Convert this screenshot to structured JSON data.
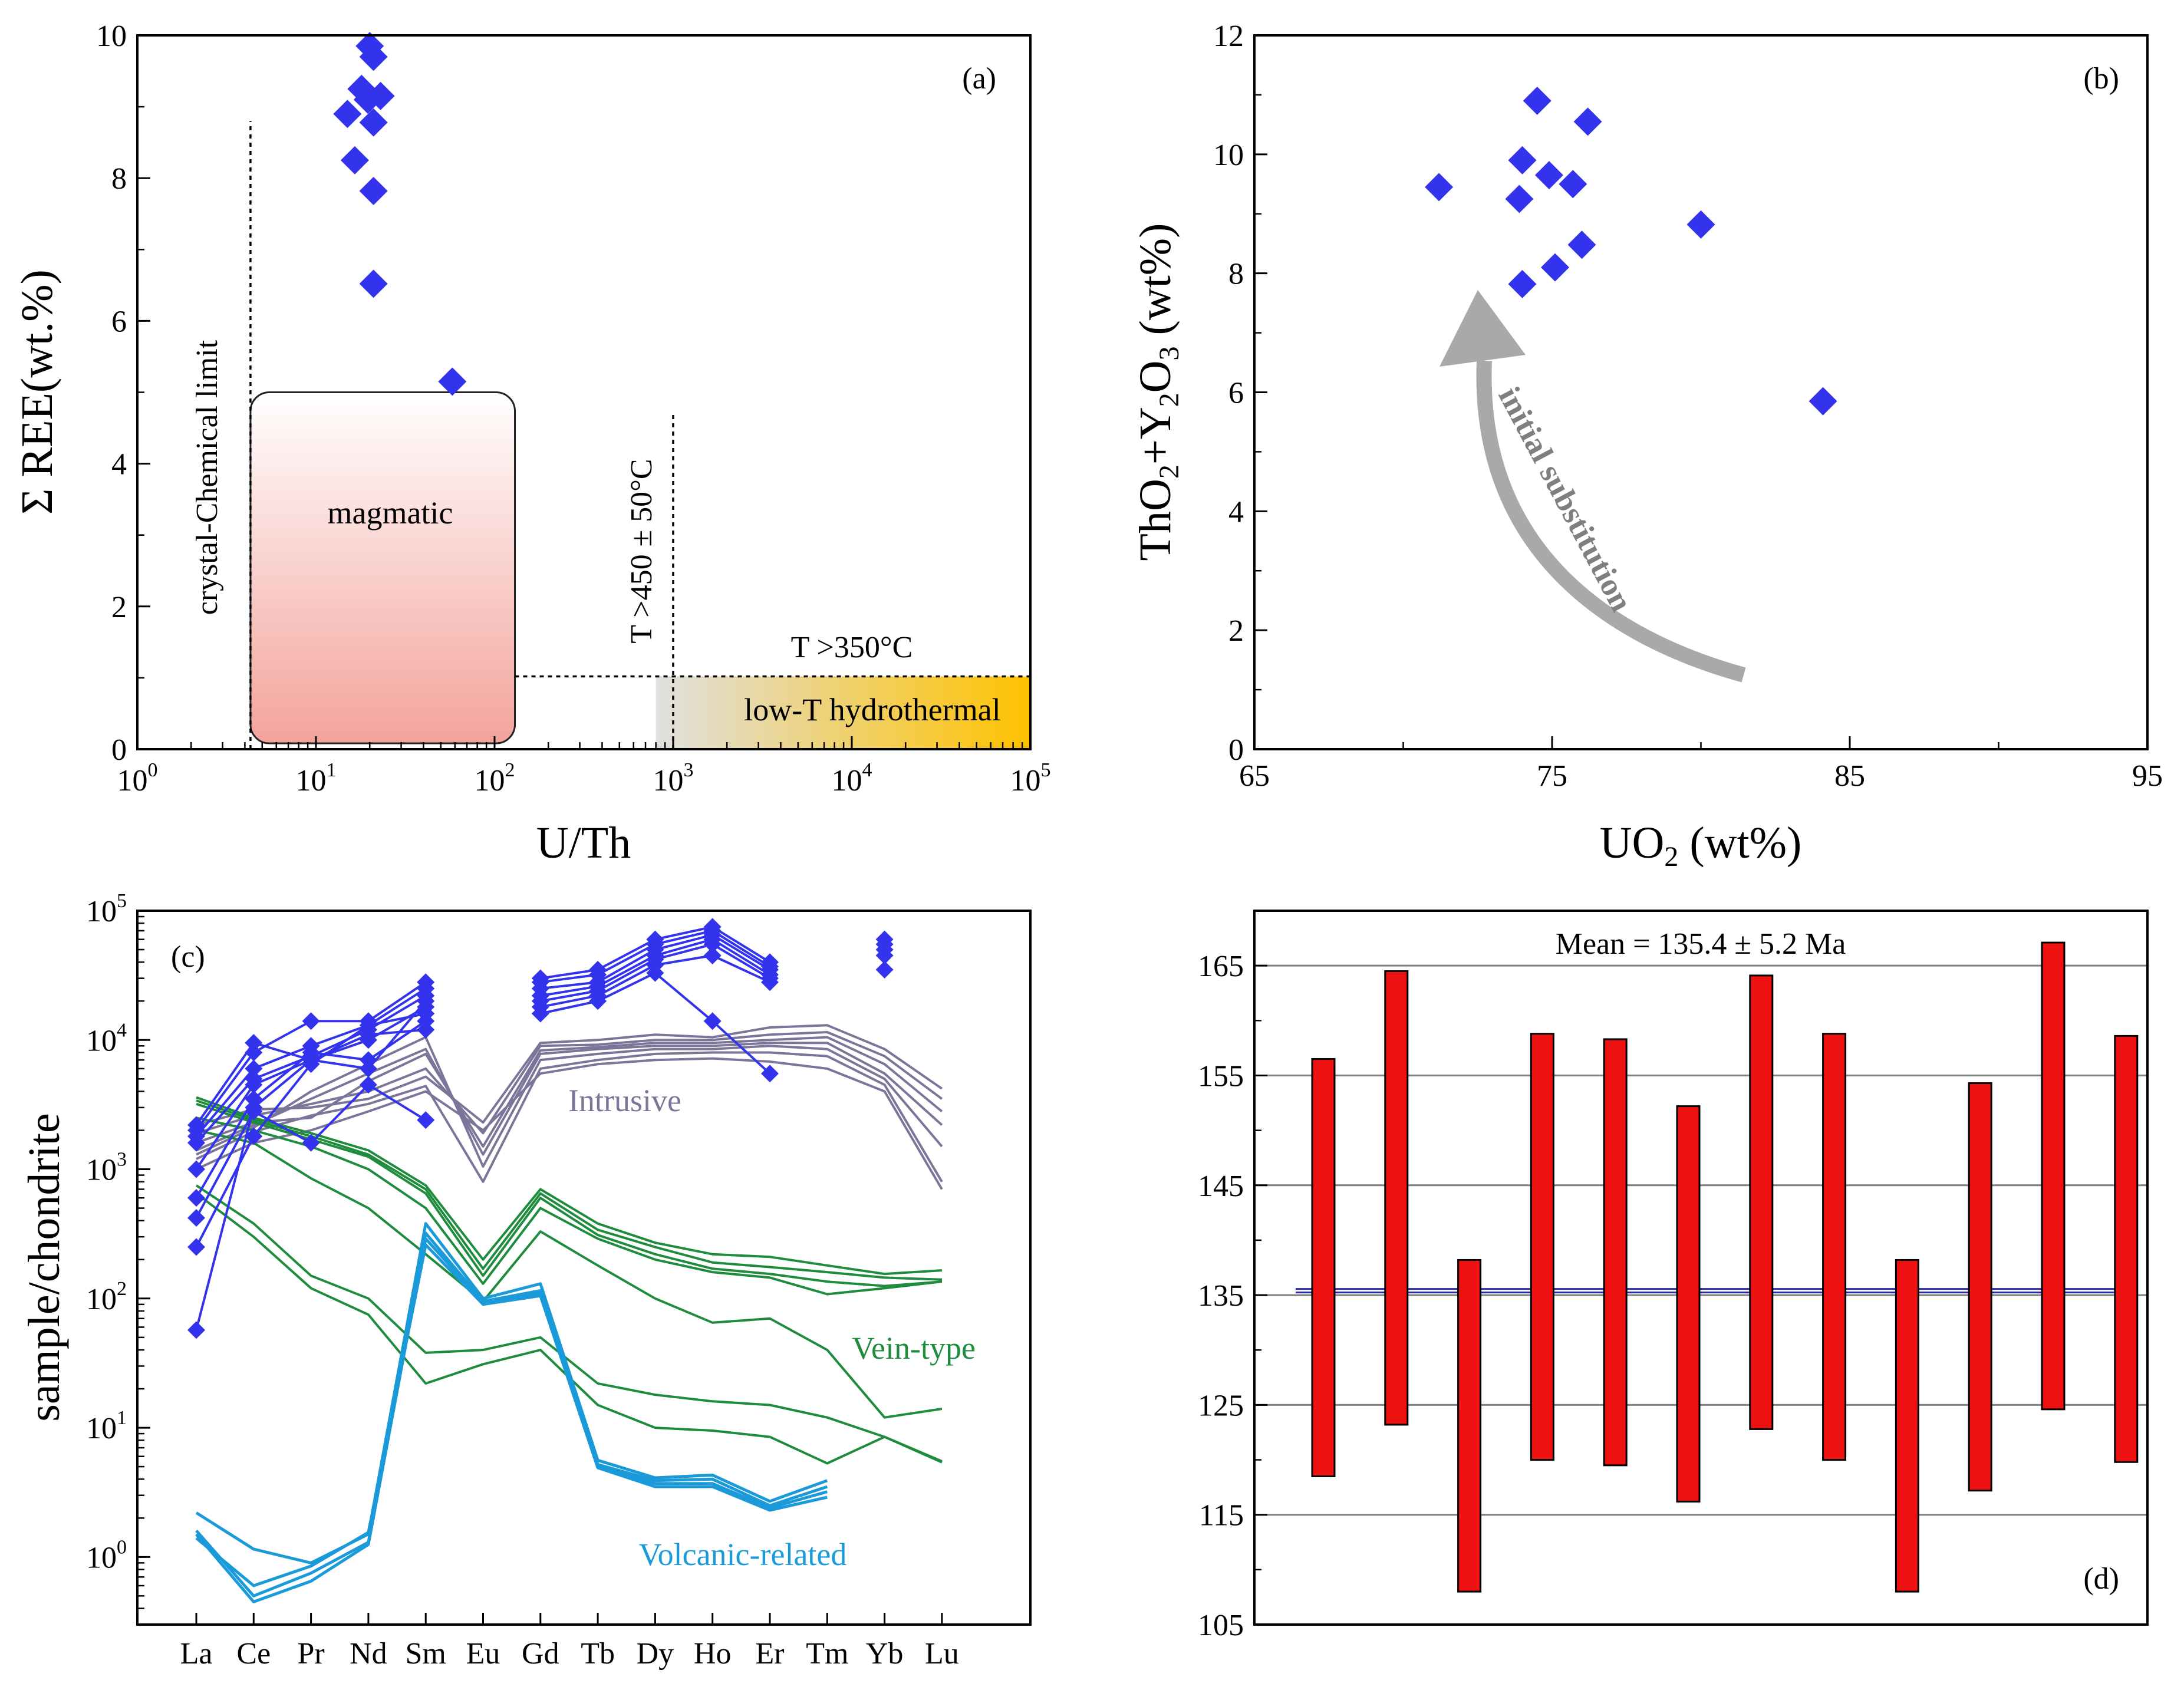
{
  "colors": {
    "marker": "#3333ee",
    "intrusive": "#7b7599",
    "vein": "#1e8c3c",
    "volcanic": "#1a9ad8",
    "bar": "#ee1111",
    "meanline": "#2b2bb0",
    "axis": "#000000",
    "grid": "#7f7f7f",
    "arrow": "#a9a9a9",
    "magmatic_top": "#ffffff",
    "magmatic_bottom": "#f3a39b",
    "hydro_left": "#e0e0e0",
    "hydro_right": "#ffc200"
  },
  "chart_data": [
    {
      "id": "a",
      "type": "scatter",
      "panel_label": "(a)",
      "xscale": "log",
      "xlabel": "U/Th",
      "ylabel": "Σ REE(wt.%)",
      "xlim": [
        1,
        100000
      ],
      "ylim": [
        0,
        10
      ],
      "xticks": [
        1,
        10,
        100,
        1000,
        10000,
        100000
      ],
      "xtick_labels": [
        "10",
        "10",
        "10",
        "10",
        "10",
        "10"
      ],
      "xtick_exponents": [
        "0",
        "1",
        "2",
        "3",
        "4",
        "5"
      ],
      "yticks": [
        0,
        2,
        4,
        6,
        8,
        10
      ],
      "ytick_labels": [
        "0",
        "2",
        "4",
        "6",
        "8",
        "10"
      ],
      "points": [
        {
          "x": 20,
          "y": 9.85
        },
        {
          "x": 21,
          "y": 9.7
        },
        {
          "x": 18,
          "y": 9.25
        },
        {
          "x": 23,
          "y": 9.15
        },
        {
          "x": 19.5,
          "y": 9.1
        },
        {
          "x": 15,
          "y": 8.9
        },
        {
          "x": 21,
          "y": 8.78
        },
        {
          "x": 16.5,
          "y": 8.25
        },
        {
          "x": 21,
          "y": 7.82
        },
        {
          "x": 21,
          "y": 6.52
        },
        {
          "x": 58,
          "y": 5.15
        }
      ],
      "regions": [
        {
          "name": "magmatic",
          "label": "magmatic",
          "x": [
            4.3,
            130
          ],
          "y": [
            0,
            5
          ]
        },
        {
          "name": "low-T hydrothermal",
          "label": "low-T hydrothermal",
          "x": [
            800,
            100000
          ],
          "y": [
            0,
            1.02
          ]
        }
      ],
      "lines": [
        {
          "name": "crystal-chemical-limit",
          "label": "crystal-Chemical limit",
          "x": 4.3,
          "y": [
            0,
            8.8
          ]
        },
        {
          "name": "T450",
          "label": "T >450 ± 50°C",
          "x": 1000,
          "y": [
            0,
            4.7
          ]
        },
        {
          "name": "T350",
          "label": "T >350°C",
          "x": [
            130,
            100000
          ],
          "y": 1.02
        }
      ]
    },
    {
      "id": "b",
      "type": "scatter",
      "panel_label": "(b)",
      "xlabel": "UO",
      "xlabel_sub": "2",
      "xlabel_tail": " (wt%)",
      "ylabel_parts": [
        "ThO",
        "2",
        "+Y",
        "2",
        "O",
        "3",
        " (wt%)"
      ],
      "xlim": [
        65,
        95
      ],
      "ylim": [
        0,
        12
      ],
      "xticks": [
        65,
        75,
        85,
        95
      ],
      "xtick_labels": [
        "65",
        "75",
        "85",
        "95"
      ],
      "yticks": [
        0,
        2,
        4,
        6,
        8,
        10,
        12
      ],
      "ytick_labels": [
        "0",
        "2",
        "4",
        "6",
        "8",
        "10",
        "12"
      ],
      "points": [
        {
          "x": 71.2,
          "y": 9.45
        },
        {
          "x": 74.5,
          "y": 10.9
        },
        {
          "x": 76.2,
          "y": 10.55
        },
        {
          "x": 74,
          "y": 9.9
        },
        {
          "x": 74.9,
          "y": 9.65
        },
        {
          "x": 75.7,
          "y": 9.5
        },
        {
          "x": 73.9,
          "y": 9.25
        },
        {
          "x": 80,
          "y": 8.82
        },
        {
          "x": 76,
          "y": 8.48
        },
        {
          "x": 75.1,
          "y": 8.1
        },
        {
          "x": 74,
          "y": 7.82
        },
        {
          "x": 84.1,
          "y": 5.85
        }
      ],
      "annotation": "initial substitution"
    },
    {
      "id": "c",
      "type": "line",
      "panel_label": "(c)",
      "yscale": "log",
      "ylabel": "sample/chondrite",
      "categories": [
        "La",
        "Ce",
        "Pr",
        "Nd",
        "Sm",
        "Eu",
        "Gd",
        "Tb",
        "Dy",
        "Ho",
        "Er",
        "Tm",
        "Yb",
        "Lu"
      ],
      "ylim": [
        0.3,
        100000
      ],
      "yticks": [
        1,
        10,
        100,
        1000,
        10000,
        100000
      ],
      "ytick_labels": [
        "10",
        "10",
        "10",
        "10",
        "10",
        "10"
      ],
      "ytick_exponents": [
        "0",
        "1",
        "2",
        "3",
        "4",
        "5"
      ],
      "groups": [
        {
          "name": "Intrusive",
          "label": "Intrusive",
          "series": [
            [
              2200,
              2900,
              3000,
              3500,
              5200,
              2300,
              9500,
              10000,
              11000,
              10500,
              12500,
              13000,
              8500,
              4200
            ],
            [
              1900,
              2600,
              3200,
              4000,
              6000,
              1900,
              9000,
              9200,
              10000,
              10000,
              11000,
              11500,
              7500,
              3500
            ],
            [
              1600,
              2300,
              2500,
              4800,
              7800,
              1500,
              8300,
              8800,
              9500,
              9500,
              10000,
              10500,
              6500,
              2800
            ],
            [
              1400,
              2200,
              3500,
              5500,
              8500,
              1300,
              7800,
              8500,
              9000,
              9000,
              9500,
              9500,
              5500,
              2200
            ],
            [
              1300,
              2100,
              4000,
              6500,
              10500,
              1050,
              7000,
              7800,
              8500,
              8500,
              9000,
              8500,
              5000,
              1500
            ],
            [
              1200,
              1950,
              2600,
              3200,
              4400,
              800,
              6000,
              7000,
              7800,
              8000,
              8000,
              7500,
              4500,
              800
            ],
            [
              1000,
              1600,
              2000,
              2800,
              4000,
              2000,
              5500,
              6500,
              7000,
              7200,
              6800,
              6000,
              4000,
              700
            ]
          ]
        },
        {
          "name": "Vein-type",
          "label": "Vein-type",
          "series": [
            [
              3600,
              2500,
              1900,
              1400,
              750,
              200,
              700,
              380,
              270,
              220,
              210,
              180,
              155,
              165
            ],
            [
              3400,
              2400,
              1800,
              1300,
              700,
              170,
              650,
              340,
              250,
              190,
              175,
              160,
              145,
              140
            ],
            [
              3200,
              2300,
              1700,
              1250,
              650,
              150,
              600,
              310,
              220,
              170,
              155,
              135,
              125,
              135
            ],
            [
              2500,
              2000,
              1500,
              1000,
              500,
              130,
              500,
              290,
              200,
              160,
              145,
              108,
              120,
              135
            ],
            [
              2000,
              1600,
              850,
              500,
              220,
              95,
              330,
              180,
              100,
              65,
              70,
              40,
              12,
              14
            ],
            [
              750,
              380,
              150,
              100,
              38,
              40,
              50,
              22,
              18,
              16,
              15,
              12,
              8.5,
              5.5
            ],
            [
              650,
              300,
              120,
              75,
              22,
              31,
              40,
              15,
              10,
              9.5,
              8.5,
              5.3,
              8.5,
              5.4
            ]
          ]
        },
        {
          "name": "Volcanic-related",
          "label": "Volcanic-related",
          "series": [
            [
              2.2,
              1.15,
              0.9,
              1.5,
              380,
              100,
              130,
              5.6,
              4.1,
              4.3,
              2.7,
              3.9
            ],
            [
              1.6,
              0.5,
              0.75,
              1.3,
              320,
              95,
              115,
              5.2,
              3.9,
              4.0,
              2.5,
              3.5
            ],
            [
              1.5,
              0.45,
              0.65,
              1.25,
              290,
              93,
              110,
              5.0,
              3.7,
              3.7,
              2.4,
              3.2
            ],
            [
              1.4,
              0.6,
              0.85,
              1.55,
              260,
              90,
              105,
              4.9,
              3.5,
              3.5,
              2.3,
              2.9
            ]
          ]
        },
        {
          "name": "samples",
          "series": [
            [
              2200,
              9500,
              7000,
              6000,
              20000,
              null,
              30000,
              35000,
              60000,
              75000,
              40000
            ],
            [
              2000,
              8000,
              14000,
              14000,
              28000,
              null,
              28000,
              32000,
              55000,
              70000,
              37000
            ],
            [
              1800,
              6000,
              9000,
              13000,
              25000,
              null,
              25000,
              28000,
              50000,
              65000,
              35000
            ],
            [
              1600,
              5000,
              7500,
              12000,
              22000,
              null,
              22000,
              26000,
              45000,
              60000,
              32000
            ],
            [
              1000,
              4500,
              7000,
              10000,
              18000,
              null,
              20000,
              24000,
              42000,
              55000,
              30000
            ],
            [
              600,
              3500,
              8000,
              7000,
              14000,
              null,
              18000,
              22000,
              38000,
              45000,
              28000
            ],
            [
              420,
              2800,
              1600,
              4500,
              2400,
              null,
              16000,
              20000,
              33000,
              14000,
              5500
            ],
            [
              250,
              1800,
              6500,
              13000,
              16000
            ],
            [
              57,
              3000,
              7000,
              11000,
              12000
            ]
          ],
          "yb_markers": [
            60000,
            55000,
            50000,
            45000,
            35000
          ]
        }
      ]
    },
    {
      "id": "d",
      "type": "bar",
      "panel_label": "(d)",
      "title": "Mean = 135.4 ± 5.2 Ma",
      "ylim": [
        105,
        170
      ],
      "yticks": [
        105,
        115,
        125,
        135,
        145,
        155,
        165
      ],
      "ytick_labels": [
        "105",
        "115",
        "125",
        "135",
        "145",
        "155",
        "165"
      ],
      "mean": 135.4,
      "ranges": [
        [
          118.5,
          156.5
        ],
        [
          123.2,
          164.5
        ],
        [
          108,
          138.2
        ],
        [
          120,
          158.8
        ],
        [
          119.5,
          158.3
        ],
        [
          116.2,
          152.2
        ],
        [
          122.8,
          164.1
        ],
        [
          120,
          158.8
        ],
        [
          108,
          138.2
        ],
        [
          117.2,
          154.3
        ],
        [
          124.6,
          167.1
        ],
        [
          119.8,
          158.6
        ]
      ]
    }
  ]
}
